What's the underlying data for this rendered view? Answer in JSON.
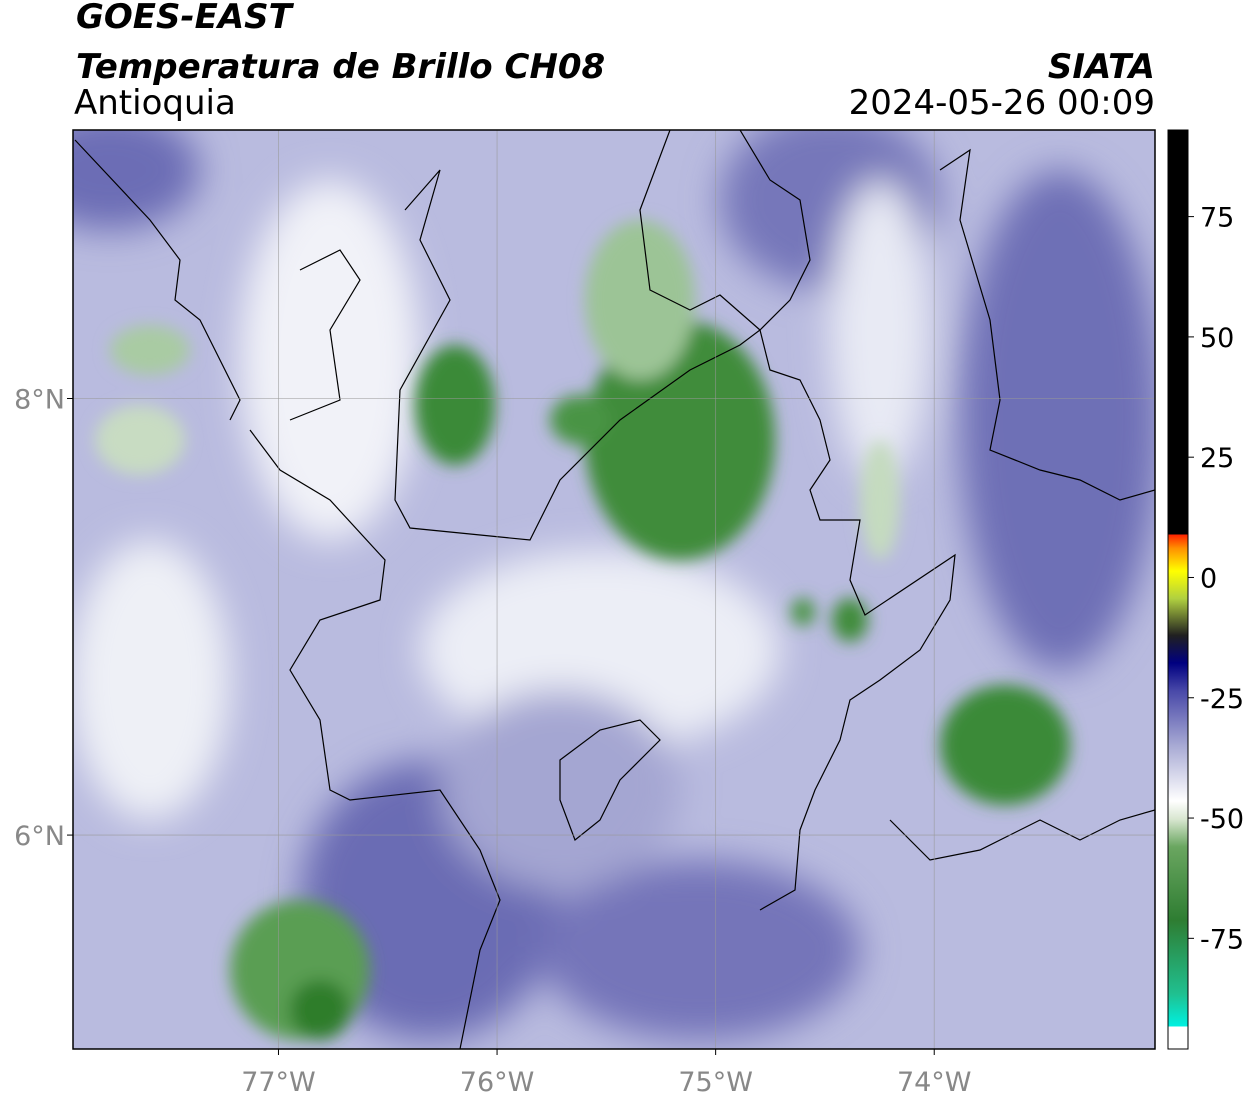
{
  "chart_data": {
    "type": "map",
    "title": "GOES-EAST",
    "subtitle": "Temperatura de Brillo CH08",
    "region": "Antioquia",
    "source": "SIATA",
    "datetime": "2024-05-26 00:09",
    "xlim": [
      -77.94,
      -72.99
    ],
    "ylim": [
      5.02,
      9.23
    ],
    "xticks": [
      {
        "value": -77,
        "label": "77°W"
      },
      {
        "value": -76,
        "label": "76°W"
      },
      {
        "value": -75,
        "label": "75°W"
      },
      {
        "value": -74,
        "label": "74°W"
      }
    ],
    "yticks": [
      {
        "value": 6,
        "label": "6°N"
      },
      {
        "value": 8,
        "label": "8°N"
      }
    ],
    "grid": true,
    "colorbar": {
      "lim": [
        -98,
        93
      ],
      "ticks": [
        -75,
        -50,
        -25,
        0,
        25,
        50,
        75
      ]
    }
  }
}
